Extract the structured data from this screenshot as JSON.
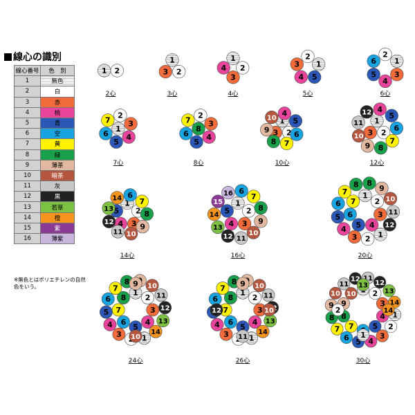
{
  "title": "線心の識別",
  "table": {
    "headers": [
      "線心番号",
      "色　別"
    ],
    "rows": [
      {
        "num": "1",
        "name": "無色",
        "bg": "#ffffff",
        "fg": "#000000",
        "hatch": true
      },
      {
        "num": "2",
        "name": "白",
        "bg": "#ffffff",
        "fg": "#000000"
      },
      {
        "num": "3",
        "name": "赤",
        "bg": "#f26b3a",
        "fg": "#000000"
      },
      {
        "num": "4",
        "name": "桃",
        "bg": "#e8449b",
        "fg": "#000000"
      },
      {
        "num": "5",
        "name": "青",
        "bg": "#2b57b6",
        "fg": "#000000"
      },
      {
        "num": "6",
        "name": "空",
        "bg": "#17a4e0",
        "fg": "#000000"
      },
      {
        "num": "7",
        "name": "黄",
        "bg": "#fff200",
        "fg": "#000000"
      },
      {
        "num": "8",
        "name": "緑",
        "bg": "#19a04a",
        "fg": "#000000"
      },
      {
        "num": "9",
        "name": "薄茶",
        "bg": "#e2b9a0",
        "fg": "#000000"
      },
      {
        "num": "10",
        "name": "暗茶",
        "bg": "#b5573f",
        "fg": "#ffffff"
      },
      {
        "num": "11",
        "name": "灰",
        "bg": "#c8c8c8",
        "fg": "#000000"
      },
      {
        "num": "12",
        "name": "黒",
        "bg": "#222222",
        "fg": "#ffffff"
      },
      {
        "num": "13",
        "name": "若草",
        "bg": "#7dc142",
        "fg": "#000000"
      },
      {
        "num": "14",
        "name": "橙",
        "bg": "#f7941d",
        "fg": "#000000"
      },
      {
        "num": "15",
        "name": "紫",
        "bg": "#8b3a96",
        "fg": "#ffffff"
      },
      {
        "num": "16",
        "name": "薄紫",
        "bg": "#c8b6dc",
        "fg": "#000000"
      }
    ]
  },
  "note": "※無色とはポリエチレンの自然色をいう。",
  "diagrams": [
    {
      "label": "2心",
      "cores": [
        "1",
        "2"
      ]
    },
    {
      "label": "3心",
      "cores": [
        "1",
        "2",
        "3"
      ]
    },
    {
      "label": "4心",
      "cores": [
        "1",
        "2",
        "3",
        "4"
      ]
    },
    {
      "label": "5心",
      "cores": [
        "2",
        "1",
        "5",
        "4",
        "3"
      ]
    },
    {
      "label": "6心",
      "cores": [
        "2",
        "1",
        "3",
        "4",
        "5",
        "6"
      ]
    },
    {
      "label": "7心",
      "cores": [
        "1",
        "2",
        "3",
        "4",
        "5",
        "6",
        "7"
      ]
    },
    {
      "label": "8心",
      "cores": [
        "1",
        "2",
        "3",
        "4",
        "5",
        "6",
        "7",
        "8"
      ]
    },
    {
      "label": "10心",
      "cores": [
        "1",
        "2",
        "3",
        "4",
        "5",
        "6",
        "7",
        "8",
        "9",
        "10"
      ]
    },
    {
      "label": "12心",
      "cores": [
        "1",
        "2",
        "3",
        "4",
        "5",
        "6",
        "7",
        "8",
        "9",
        "10",
        "11",
        "12"
      ]
    },
    {
      "label": "14心",
      "cores": [
        "1",
        "2",
        "3",
        "4",
        "5",
        "6",
        "7",
        "8",
        "9",
        "10",
        "11",
        "12",
        "13",
        "14"
      ]
    },
    {
      "label": "16心",
      "cores": [
        "1",
        "2",
        "3",
        "4",
        "5",
        "6",
        "7",
        "8",
        "9",
        "10",
        "11",
        "12",
        "13",
        "14",
        "15",
        "16"
      ]
    },
    {
      "label": "20心",
      "cores": [
        "1",
        "2",
        "3",
        "4",
        "5",
        "6",
        "7",
        "8",
        "9",
        "10",
        "11",
        "12",
        "1",
        "2",
        "3",
        "4",
        "5",
        "6",
        "7",
        "8"
      ]
    },
    {
      "label": "24心",
      "cores": [
        "1",
        "2",
        "3",
        "4",
        "5",
        "6",
        "7",
        "8",
        "9",
        "10",
        "11",
        "12",
        "13",
        "14",
        "1",
        "2",
        "3",
        "4",
        "5",
        "6",
        "7",
        "8",
        "9",
        "10"
      ]
    },
    {
      "label": "26心",
      "cores": [
        "1",
        "2",
        "3",
        "4",
        "5",
        "6",
        "7",
        "8",
        "9",
        "10",
        "11",
        "12",
        "13",
        "14",
        "1",
        "2",
        "3",
        "4",
        "5",
        "6",
        "7",
        "8",
        "9",
        "10",
        "11",
        "12"
      ]
    },
    {
      "label": "30心",
      "cores": [
        "1",
        "2",
        "3",
        "4",
        "5",
        "6",
        "7",
        "8",
        "9",
        "10",
        "11",
        "12",
        "13",
        "14",
        "1",
        "2",
        "3",
        "4",
        "5",
        "6",
        "7",
        "8",
        "9",
        "10",
        "11",
        "12",
        "13",
        "14",
        "1",
        "2"
      ]
    }
  ]
}
